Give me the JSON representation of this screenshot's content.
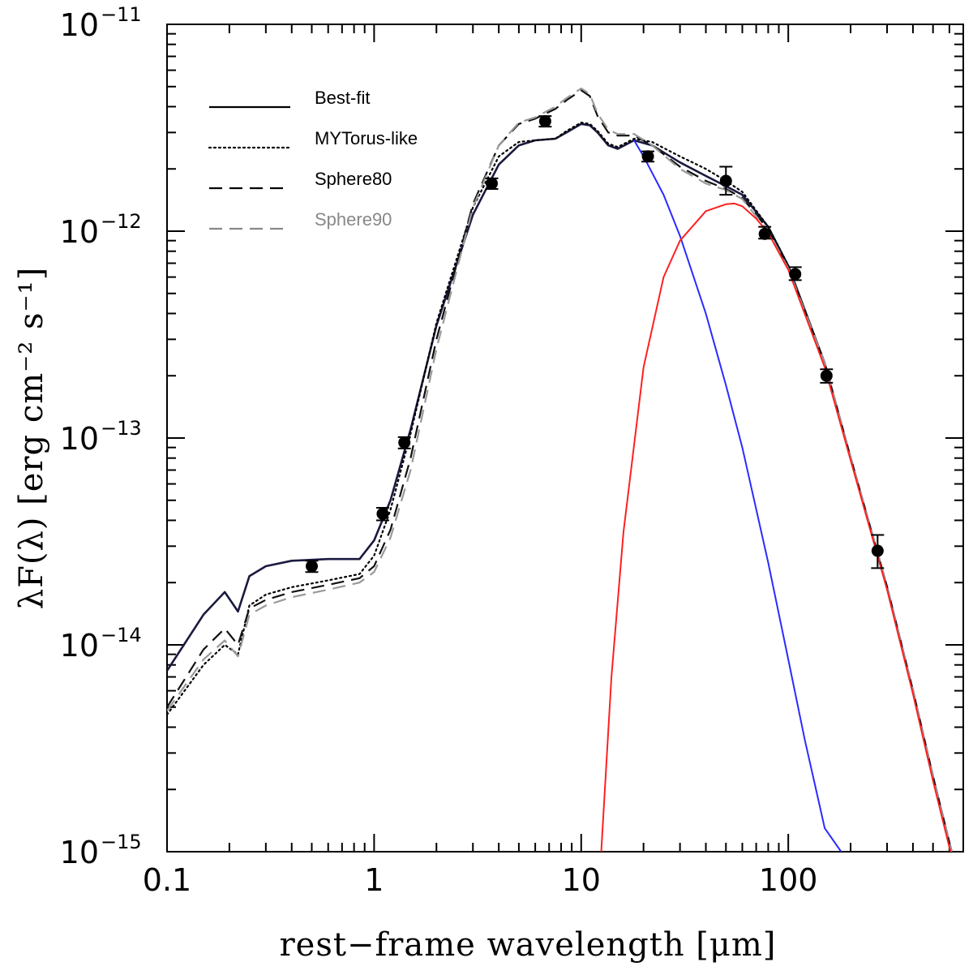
{
  "chart_data": {
    "type": "line",
    "title": "",
    "xlabel": "rest−frame wavelength [μm]",
    "ylabel": "λF(λ) [erg cm⁻² s⁻¹]",
    "xscale": "log",
    "yscale": "log",
    "xlim": [
      0.1,
      700
    ],
    "ylim": [
      1e-15,
      1e-11
    ],
    "x_ticks": [
      {
        "value": 0.1,
        "label": "0.1"
      },
      {
        "value": 1,
        "label": "1"
      },
      {
        "value": 10,
        "label": "10"
      },
      {
        "value": 100,
        "label": "100"
      }
    ],
    "y_ticks": [
      {
        "value": 1e-11,
        "base": "10",
        "exp": "−11"
      },
      {
        "value": 1e-12,
        "base": "10",
        "exp": "−12"
      },
      {
        "value": 1e-13,
        "base": "10",
        "exp": "−13"
      },
      {
        "value": 1e-14,
        "base": "10",
        "exp": "−14"
      },
      {
        "value": 1e-15,
        "base": "10",
        "exp": "−15"
      }
    ],
    "grid": false,
    "legend_position": "top-left",
    "legend": [
      {
        "label": "Best-fit",
        "color": "#000000",
        "dash": "solid"
      },
      {
        "label": "MYTorus-like",
        "color": "#000000",
        "dash": "dotted"
      },
      {
        "label": "Sphere80",
        "color": "#000000",
        "dash": "dashed"
      },
      {
        "label": "Sphere90",
        "color": "#888888",
        "dash": "dashed"
      }
    ],
    "series": [
      {
        "name": "Best-fit",
        "color": "#1a1a40",
        "dash": "solid",
        "width": 2.6,
        "x": [
          0.1,
          0.15,
          0.19,
          0.22,
          0.25,
          0.3,
          0.4,
          0.6,
          0.85,
          1.0,
          1.2,
          1.5,
          2.0,
          3.0,
          4.0,
          5.0,
          6.0,
          7.5,
          8.5,
          10,
          11,
          12,
          13.5,
          15,
          18,
          22,
          30,
          40,
          50,
          60,
          80,
          100,
          150,
          200,
          300,
          400,
          500,
          600,
          650
        ],
        "y": [
          7.5e-15,
          1.4e-14,
          1.8e-14,
          1.45e-14,
          2.15e-14,
          2.4e-14,
          2.55e-14,
          2.6e-14,
          2.6e-14,
          3.2e-14,
          5e-14,
          1.1e-13,
          3.5e-13,
          1.2e-12,
          2.1e-12,
          2.6e-12,
          2.75e-12,
          2.8e-12,
          3e-12,
          3.3e-12,
          3.25e-12,
          3e-12,
          2.6e-12,
          2.5e-12,
          2.75e-12,
          2.6e-12,
          2.15e-12,
          1.85e-12,
          1.65e-12,
          1.5e-12,
          1.05e-12,
          6.8e-13,
          2.3e-13,
          8e-14,
          1.9e-14,
          6e-15,
          2.3e-15,
          1.1e-15,
          8e-16
        ]
      },
      {
        "name": "MYTorus-like",
        "color": "#000000",
        "dash": "dotted",
        "width": 2.2,
        "x": [
          0.1,
          0.15,
          0.19,
          0.22,
          0.25,
          0.3,
          0.4,
          0.6,
          0.85,
          1.0,
          1.2,
          1.5,
          2.0,
          3.0,
          4.0,
          5.0,
          6.0,
          7.5,
          8.5,
          10,
          11,
          12,
          13.5,
          15,
          18,
          22,
          30,
          40,
          50,
          60,
          80,
          100,
          150,
          200,
          300,
          400,
          500,
          600,
          650
        ],
        "y": [
          4.6e-15,
          8e-15,
          1e-14,
          9e-15,
          1.55e-14,
          1.75e-14,
          1.9e-14,
          2.05e-14,
          2.2e-14,
          2.7e-14,
          4.5e-14,
          1.05e-13,
          3.6e-13,
          1.3e-12,
          2.3e-12,
          2.7e-12,
          2.75e-12,
          2.8e-12,
          3.05e-12,
          3.35e-12,
          3.3e-12,
          3.05e-12,
          2.65e-12,
          2.55e-12,
          2.8e-12,
          2.7e-12,
          2.3e-12,
          2e-12,
          1.75e-12,
          1.55e-12,
          1.05e-12,
          6.8e-13,
          2.3e-13,
          8e-14,
          1.9e-14,
          6e-15,
          2.3e-15,
          1.1e-15,
          8e-16
        ]
      },
      {
        "name": "Sphere80",
        "color": "#111111",
        "dash": "dashed",
        "width": 2.2,
        "x": [
          0.1,
          0.15,
          0.19,
          0.22,
          0.25,
          0.3,
          0.4,
          0.6,
          0.85,
          1.0,
          1.2,
          1.5,
          2.0,
          3.0,
          4.0,
          5.0,
          6.0,
          7.5,
          8.5,
          10,
          11,
          12,
          13.5,
          15,
          18,
          22,
          30,
          40,
          50,
          60,
          80,
          100,
          150,
          200,
          300,
          400,
          500,
          600,
          650
        ],
        "y": [
          5e-15,
          9.5e-15,
          1.2e-14,
          1e-14,
          1.5e-14,
          1.65e-14,
          1.8e-14,
          1.95e-14,
          2.1e-14,
          2.4e-14,
          3.6e-14,
          8e-14,
          3e-13,
          1.35e-12,
          2.6e-12,
          3.3e-12,
          3.5e-12,
          3.9e-12,
          4.3e-12,
          4.8e-12,
          4.5e-12,
          3.6e-12,
          3e-12,
          2.9e-12,
          2.9e-12,
          2.6e-12,
          2.05e-12,
          1.75e-12,
          1.6e-12,
          1.45e-12,
          1.02e-12,
          6.7e-13,
          2.3e-13,
          8e-14,
          1.9e-14,
          6e-15,
          2.3e-15,
          1.1e-15,
          8e-16
        ]
      },
      {
        "name": "Sphere90",
        "color": "#999999",
        "dash": "dashed",
        "width": 2.2,
        "x": [
          0.1,
          0.15,
          0.19,
          0.22,
          0.25,
          0.3,
          0.4,
          0.6,
          0.85,
          1.0,
          1.2,
          1.5,
          2.0,
          3.0,
          4.0,
          5.0,
          6.0,
          7.5,
          8.5,
          10,
          11,
          12,
          13.5,
          15,
          18,
          22,
          30,
          40,
          50,
          60,
          80,
          100,
          150,
          200,
          300,
          400,
          500,
          600,
          650
        ],
        "y": [
          4.8e-15,
          8.5e-15,
          1.05e-14,
          8.8e-15,
          1.4e-14,
          1.55e-14,
          1.7e-14,
          1.85e-14,
          2e-14,
          2.25e-14,
          3.3e-14,
          7e-14,
          2.7e-13,
          1.3e-12,
          2.6e-12,
          3.35e-12,
          3.55e-12,
          4e-12,
          4.4e-12,
          4.9e-12,
          4.6e-12,
          3.7e-12,
          3.1e-12,
          2.95e-12,
          2.95e-12,
          2.6e-12,
          2e-12,
          1.7e-12,
          1.58e-12,
          1.43e-12,
          1e-12,
          6.6e-13,
          2.3e-13,
          8e-14,
          1.9e-14,
          6e-15,
          2.3e-15,
          1.1e-15,
          8e-16
        ]
      },
      {
        "name": "",
        "color": "#2b2bff",
        "dash": "solid",
        "width": 2.0,
        "x": [
          18,
          20,
          25,
          30,
          40,
          50,
          60,
          80,
          100,
          120,
          150,
          180
        ],
        "y": [
          2.75e-12,
          2.3e-12,
          1.5e-12,
          9.5e-13,
          4e-13,
          1.8e-13,
          9e-14,
          2.5e-14,
          8.5e-15,
          3.5e-15,
          1.3e-15,
          1e-15
        ]
      },
      {
        "name": "",
        "color": "#ff2020",
        "dash": "solid",
        "width": 2.0,
        "x": [
          12.5,
          14,
          16,
          20,
          25,
          30,
          40,
          50,
          55,
          60,
          70,
          80,
          100,
          150,
          200,
          300,
          400,
          500,
          600,
          650
        ],
        "y": [
          1e-15,
          7e-15,
          3.5e-14,
          2.2e-13,
          6e-13,
          9e-13,
          1.25e-12,
          1.35e-12,
          1.36e-12,
          1.32e-12,
          1.15e-12,
          9.8e-13,
          6.5e-13,
          2.2e-13,
          7.8e-14,
          1.85e-14,
          5.8e-15,
          2.2e-15,
          1.05e-15,
          7.8e-16
        ]
      }
    ],
    "points": [
      {
        "x": 0.5,
        "y": 2.4e-14,
        "ylo": 2.25e-14,
        "yhi": 2.55e-14
      },
      {
        "x": 1.1,
        "y": 4.3e-14,
        "ylo": 4e-14,
        "yhi": 4.6e-14
      },
      {
        "x": 1.4,
        "y": 9.5e-14,
        "ylo": 8.9e-14,
        "yhi": 1.01e-13
      },
      {
        "x": 3.7,
        "y": 1.7e-12,
        "ylo": 1.6e-12,
        "yhi": 1.8e-12
      },
      {
        "x": 6.7,
        "y": 3.4e-12,
        "ylo": 3.2e-12,
        "yhi": 3.6e-12
      },
      {
        "x": 21,
        "y": 2.3e-12,
        "ylo": 2.17e-12,
        "yhi": 2.43e-12
      },
      {
        "x": 50,
        "y": 1.75e-12,
        "ylo": 1.5e-12,
        "yhi": 2.05e-12
      },
      {
        "x": 77,
        "y": 9.7e-13,
        "ylo": 9.2e-13,
        "yhi": 1.05e-12
      },
      {
        "x": 108,
        "y": 6.2e-13,
        "ylo": 5.8e-13,
        "yhi": 6.7e-13
      },
      {
        "x": 153,
        "y": 2e-13,
        "ylo": 1.85e-13,
        "yhi": 2.15e-13
      },
      {
        "x": 270,
        "y": 2.85e-14,
        "ylo": 2.35e-14,
        "yhi": 3.4e-14
      }
    ]
  }
}
